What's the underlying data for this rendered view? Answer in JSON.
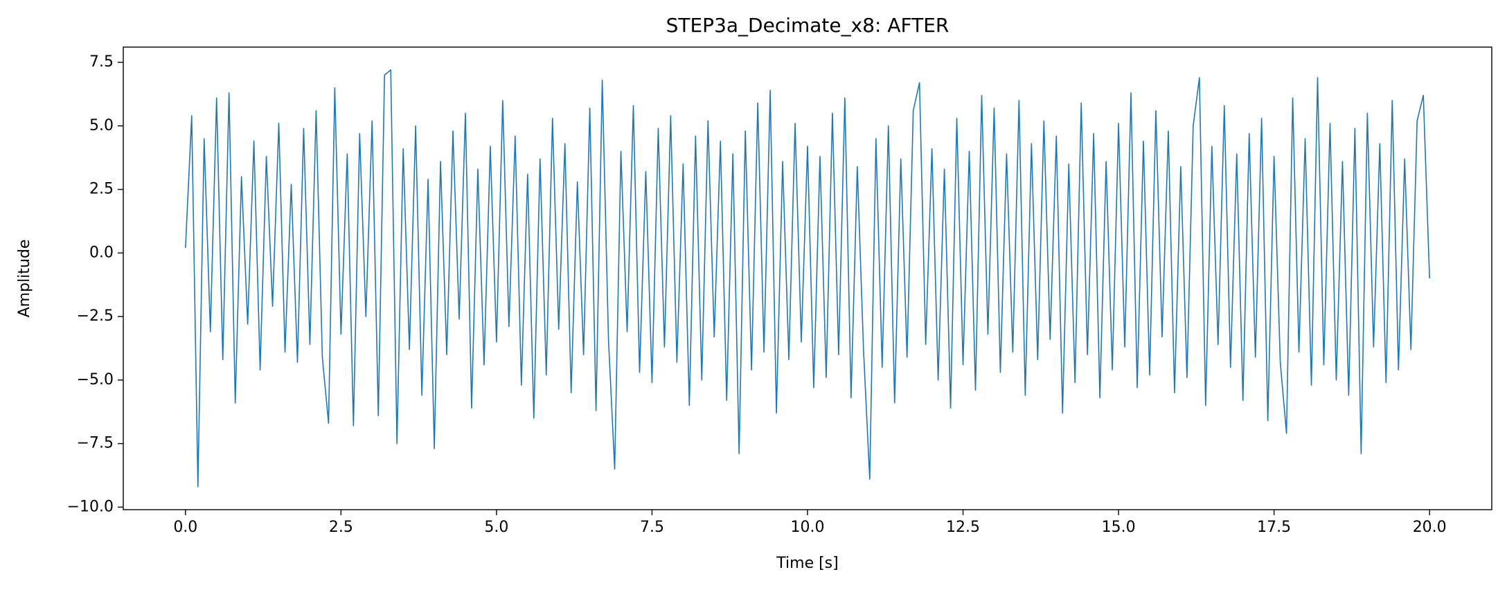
{
  "chart_data": {
    "type": "line",
    "title": "STEP3a_Decimate_x8: AFTER",
    "x_label": "Time [s]",
    "y_label": "Amplitude",
    "x": [
      0,
      0.1,
      0.2,
      0.3,
      0.4,
      0.5,
      0.6,
      0.7,
      0.8,
      0.9,
      1,
      1.1,
      1.2,
      1.3,
      1.4,
      1.5,
      1.6,
      1.7,
      1.8,
      1.9,
      2,
      2.1,
      2.2,
      2.3,
      2.4,
      2.5,
      2.6,
      2.7,
      2.8,
      2.9,
      3,
      3.1,
      3.2,
      3.3,
      3.4,
      3.5,
      3.6,
      3.7,
      3.8,
      3.9,
      4,
      4.1,
      4.2,
      4.3,
      4.4,
      4.5,
      4.6,
      4.7,
      4.8,
      4.9,
      5,
      5.1,
      5.2,
      5.3,
      5.4,
      5.5,
      5.6,
      5.7,
      5.8,
      5.9,
      6,
      6.1,
      6.2,
      6.3,
      6.4,
      6.5,
      6.6,
      6.7,
      6.8,
      6.9,
      7,
      7.1,
      7.2,
      7.3,
      7.4,
      7.5,
      7.6,
      7.7,
      7.8,
      7.9,
      8,
      8.1,
      8.2,
      8.3,
      8.4,
      8.5,
      8.6,
      8.7,
      8.8,
      8.9,
      9,
      9.1,
      9.2,
      9.3,
      9.4,
      9.5,
      9.6,
      9.7,
      9.8,
      9.9,
      10,
      10.1,
      10.2,
      10.3,
      10.4,
      10.5,
      10.6,
      10.7,
      10.8,
      10.9,
      11,
      11.1,
      11.2,
      11.3,
      11.4,
      11.5,
      11.6,
      11.7,
      11.8,
      11.9,
      12,
      12.1,
      12.2,
      12.3,
      12.4,
      12.5,
      12.6,
      12.7,
      12.8,
      12.9,
      13,
      13.1,
      13.2,
      13.3,
      13.4,
      13.5,
      13.6,
      13.7,
      13.8,
      13.9,
      14,
      14.1,
      14.2,
      14.3,
      14.4,
      14.5,
      14.6,
      14.7,
      14.8,
      14.9,
      15,
      15.1,
      15.2,
      15.3,
      15.4,
      15.5,
      15.6,
      15.7,
      15.8,
      15.9,
      16,
      16.1,
      16.2,
      16.3,
      16.4,
      16.5,
      16.6,
      16.7,
      16.8,
      16.9,
      17,
      17.1,
      17.2,
      17.3,
      17.4,
      17.5,
      17.6,
      17.7,
      17.8,
      17.9,
      18,
      18.1,
      18.2,
      18.3,
      18.4,
      18.5,
      18.6,
      18.7,
      18.8,
      18.9,
      19,
      19.1,
      19.2,
      19.3,
      19.4,
      19.5,
      19.6,
      19.7,
      19.8,
      19.9,
      20
    ],
    "series": [
      {
        "color": "#1f77b4",
        "values": [
          0.2,
          5.4,
          -9.2,
          4.5,
          -3.1,
          6.1,
          -4.2,
          6.3,
          -5.9,
          3.0,
          -2.8,
          4.4,
          -4.6,
          3.8,
          -2.1,
          5.1,
          -3.9,
          2.7,
          -4.3,
          4.9,
          -3.6,
          5.6,
          -4.1,
          -6.7,
          6.5,
          -3.2,
          3.9,
          -6.8,
          4.7,
          -2.5,
          5.2,
          -6.4,
          7.0,
          7.2,
          -7.5,
          4.1,
          -3.8,
          5.0,
          -5.6,
          2.9,
          -7.7,
          3.6,
          -4.0,
          4.8,
          -2.6,
          5.5,
          -6.1,
          3.3,
          -4.4,
          4.2,
          -3.5,
          6.0,
          -2.9,
          4.6,
          -5.2,
          3.1,
          -6.5,
          3.7,
          -4.8,
          5.3,
          -3.0,
          4.3,
          -5.5,
          2.8,
          -4.0,
          5.7,
          -6.2,
          6.8,
          -3.4,
          -8.5,
          4.0,
          -3.1,
          5.8,
          -4.7,
          3.2,
          -5.1,
          4.9,
          -3.7,
          5.4,
          -4.3,
          3.5,
          -6.0,
          4.6,
          -5.0,
          5.2,
          -3.3,
          4.4,
          -5.8,
          3.9,
          -7.9,
          4.8,
          -4.6,
          5.9,
          -3.9,
          6.4,
          -6.3,
          3.6,
          -4.2,
          5.1,
          -3.5,
          4.2,
          -5.3,
          3.8,
          -4.9,
          5.5,
          -4.0,
          6.1,
          -5.7,
          3.4,
          -3.8,
          -8.9,
          4.5,
          -4.5,
          5.0,
          -5.9,
          3.7,
          -4.1,
          5.6,
          6.7,
          -3.6,
          4.1,
          -5.0,
          3.3,
          -6.1,
          5.3,
          -4.4,
          4.0,
          -5.4,
          6.2,
          -3.2,
          5.7,
          -4.7,
          3.9,
          -3.9,
          6.0,
          -5.6,
          4.3,
          -4.2,
          5.2,
          -3.4,
          4.6,
          -6.3,
          3.5,
          -5.1,
          5.9,
          -4.0,
          4.7,
          -5.7,
          3.6,
          -4.6,
          5.1,
          -3.7,
          6.3,
          -5.3,
          4.4,
          -4.8,
          5.6,
          -3.3,
          4.8,
          -5.5,
          3.4,
          -4.9,
          5.0,
          6.9,
          -6.0,
          4.2,
          -3.6,
          5.8,
          -4.5,
          3.9,
          -5.8,
          4.7,
          -4.1,
          5.3,
          -6.6,
          3.8,
          -4.3,
          -7.1,
          6.1,
          -3.9,
          4.5,
          -5.2,
          6.9,
          -4.4,
          5.1,
          -5.0,
          3.6,
          -5.6,
          4.9,
          -7.9,
          5.5,
          -3.7,
          4.3,
          -5.1,
          6.0,
          -4.6,
          3.7,
          -3.8,
          5.2,
          6.2,
          -1.0
        ]
      }
    ],
    "xlim": [
      -1.0,
      21.0
    ],
    "ylim": [
      -10.1,
      8.1
    ],
    "xticks": [
      {
        "value": 0,
        "label": "0.0"
      },
      2.5,
      {
        "value": 5,
        "label": "5.0"
      },
      7.5,
      {
        "value": 10,
        "label": "10.0"
      },
      12.5,
      {
        "value": 15,
        "label": "15.0"
      },
      17.5,
      {
        "value": 20,
        "label": "20.0"
      }
    ],
    "yticks": [
      {
        "value": -10,
        "label": "−10.0"
      },
      {
        "value": -7.5,
        "label": "−7.5"
      },
      {
        "value": -5,
        "label": "−5.0"
      },
      {
        "value": -2.5,
        "label": "−2.5"
      },
      {
        "value": 0,
        "label": "0.0"
      },
      2.5,
      {
        "value": 5,
        "label": "5.0"
      },
      7.5
    ]
  }
}
